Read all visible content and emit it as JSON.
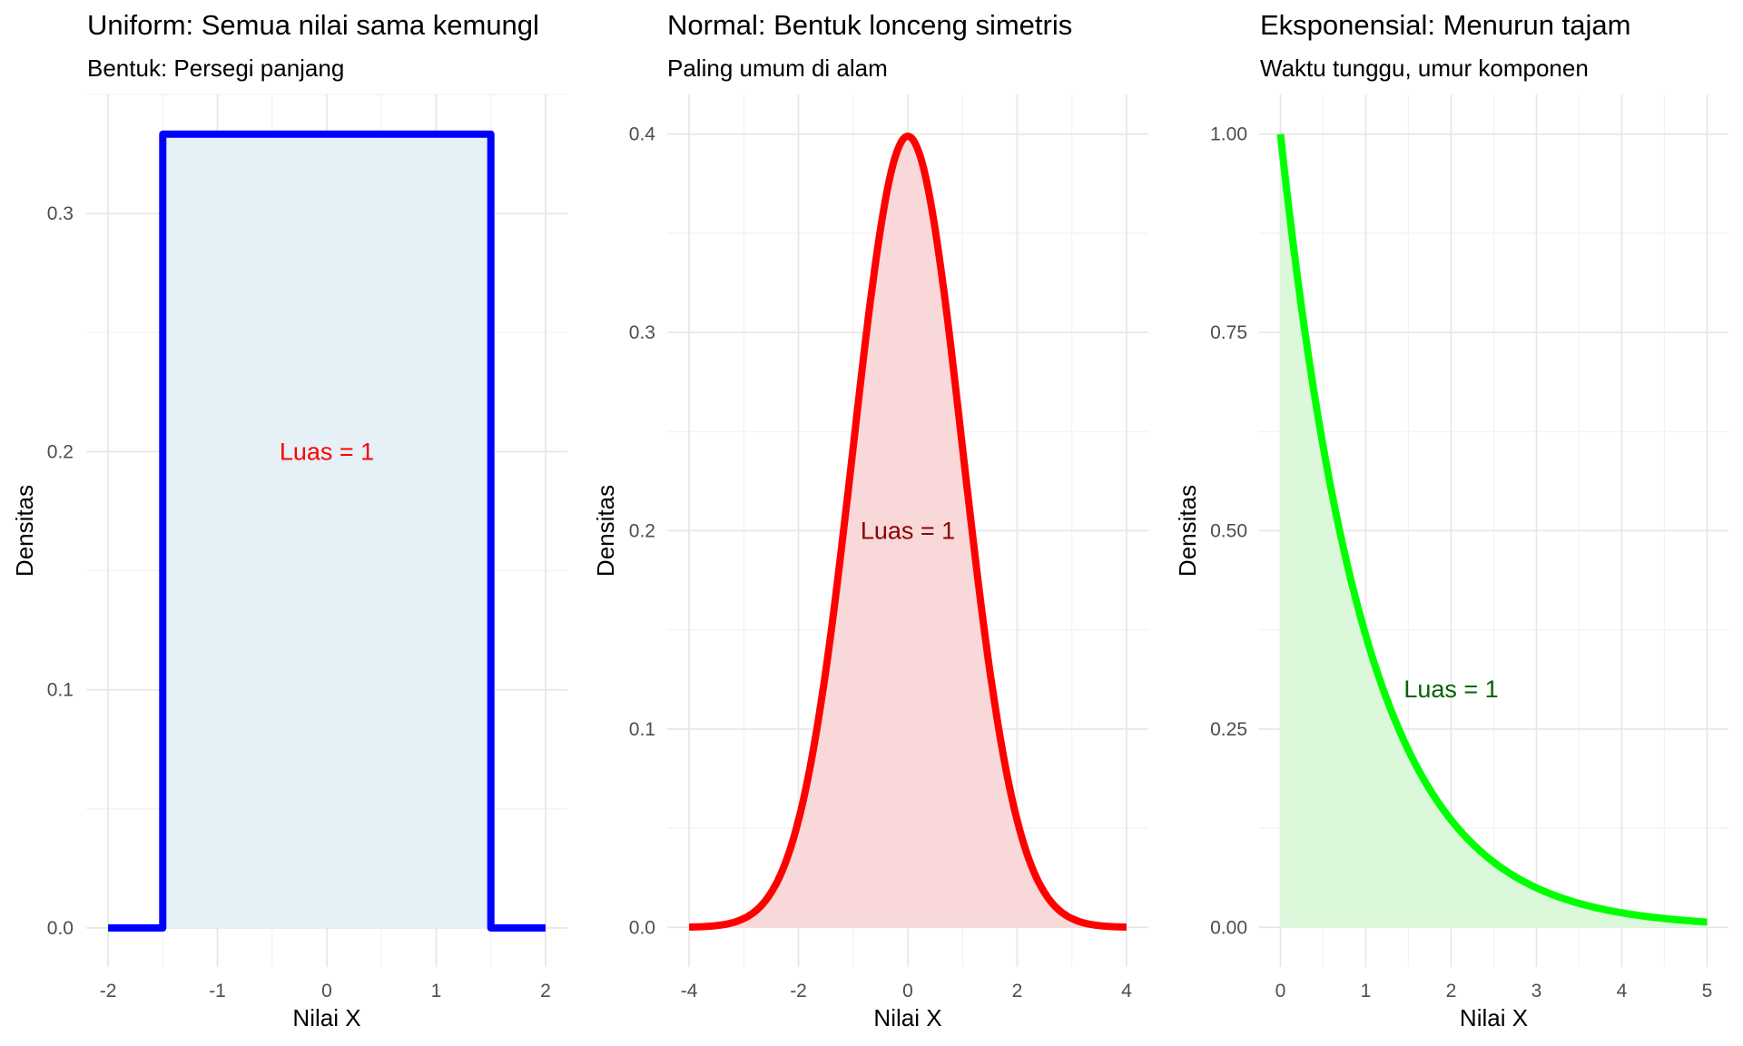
{
  "chart_data": [
    {
      "type": "area",
      "title": "Uniform: Semua nilai sama kemungl",
      "subtitle": "Bentuk: Persegi panjang",
      "xlabel": "Nilai X",
      "ylabel": "Densitas",
      "distribution": "uniform",
      "params": {
        "min": -1.5,
        "max": 1.5
      },
      "x_range": [
        -2,
        2
      ],
      "xlim": [
        -2.2,
        2.2
      ],
      "ylim": [
        -0.0164,
        0.35
      ],
      "xticks": [
        -2,
        -1,
        0,
        1,
        2
      ],
      "xtick_labels": [
        "-2",
        "-1",
        "0",
        "1",
        "2"
      ],
      "yticks": [
        0,
        0.1,
        0.2,
        0.3
      ],
      "ytick_labels": [
        "0.0",
        "0.1",
        "0.2",
        "0.3"
      ],
      "line_color": "#0000ff",
      "fill_color": "#e5f0f7",
      "annotation": {
        "text": "Luas = 1",
        "x": 0,
        "y": 0.2,
        "color": "#ff0000"
      },
      "grid": true
    },
    {
      "type": "area",
      "title": "Normal: Bentuk lonceng simetris",
      "subtitle": "Paling umum di alam",
      "xlabel": "Nilai X",
      "ylabel": "Densitas",
      "distribution": "normal",
      "params": {
        "mean": 0,
        "sd": 1
      },
      "x_range": [
        -4,
        4
      ],
      "xlim": [
        -4.4,
        4.4
      ],
      "ylim": [
        -0.02,
        0.42
      ],
      "xticks": [
        -4,
        -2,
        0,
        2,
        4
      ],
      "xtick_labels": [
        "-4",
        "-2",
        "0",
        "2",
        "4"
      ],
      "yticks": [
        0,
        0.1,
        0.2,
        0.3,
        0.4
      ],
      "ytick_labels": [
        "0.0",
        "0.1",
        "0.2",
        "0.3",
        "0.4"
      ],
      "line_color": "#ff0000",
      "fill_color": "#f8d8d8",
      "annotation": {
        "text": "Luas = 1",
        "x": 0,
        "y": 0.2,
        "color": "#8b0000"
      },
      "grid": true
    },
    {
      "type": "area",
      "title": "Eksponensial: Menurun tajam",
      "subtitle": "Waktu tunggu, umur komponen",
      "xlabel": "Nilai X",
      "ylabel": "Densitas",
      "distribution": "exponential",
      "params": {
        "rate": 1
      },
      "x_range": [
        0,
        5
      ],
      "xlim": [
        -0.25,
        5.25
      ],
      "ylim": [
        -0.05,
        1.05
      ],
      "xticks": [
        0,
        1,
        2,
        3,
        4,
        5
      ],
      "xtick_labels": [
        "0",
        "1",
        "2",
        "3",
        "4",
        "5"
      ],
      "yticks": [
        0,
        0.25,
        0.5,
        0.75,
        1.0
      ],
      "ytick_labels": [
        "0.00",
        "0.25",
        "0.50",
        "0.75",
        "1.00"
      ],
      "line_color": "#00ff00",
      "fill_color": "#dbf8db",
      "annotation": {
        "text": "Luas = 1",
        "x": 2,
        "y": 0.3,
        "color": "#006400"
      },
      "grid": true
    }
  ]
}
